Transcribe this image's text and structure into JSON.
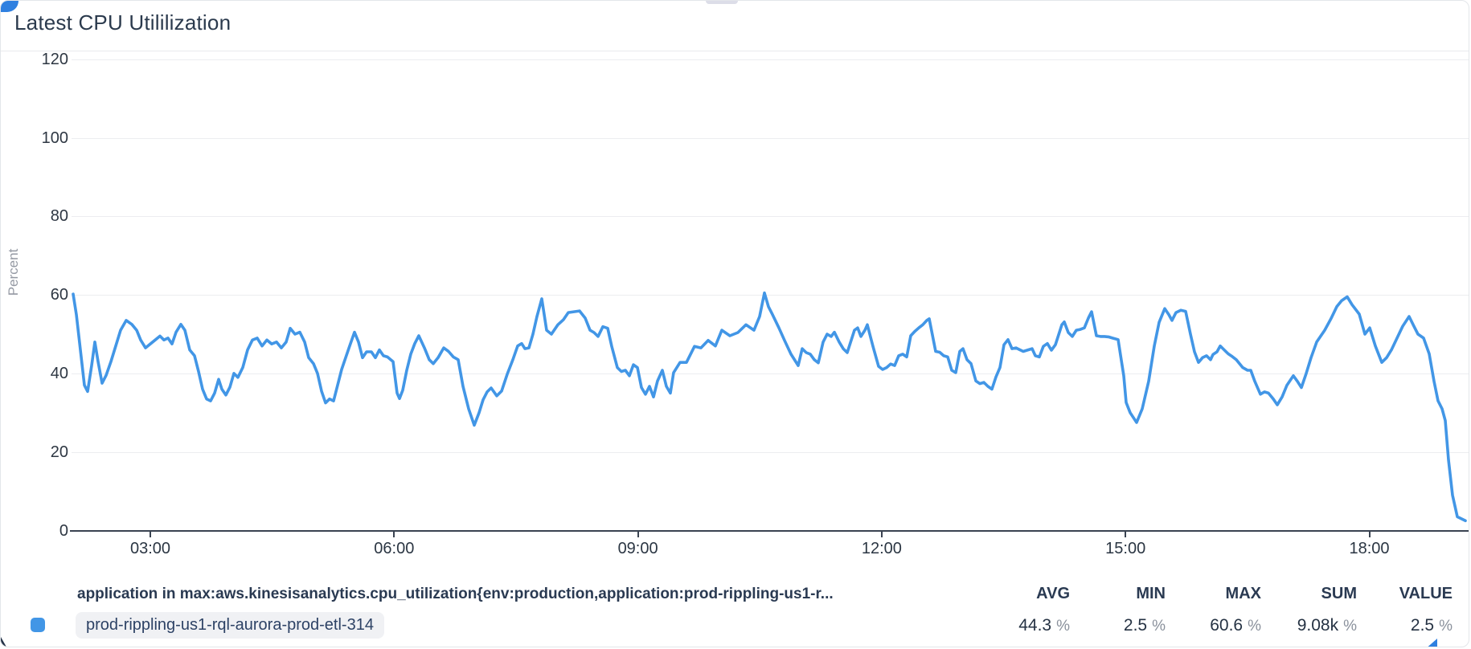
{
  "card": {
    "title": "Latest CPU Utililization"
  },
  "chart_data": {
    "type": "line",
    "title": "Latest CPU Utililization",
    "xlabel": "",
    "ylabel": "Percent",
    "ylim": [
      0,
      120
    ],
    "grid": "horizontal",
    "legend_position": "bottom",
    "y_ticks": [
      120,
      100,
      80,
      60,
      40,
      20,
      0
    ],
    "x_tick_labels": [
      "03:00",
      "06:00",
      "09:00",
      "12:00",
      "15:00",
      "18:00"
    ],
    "line_color": "#4296e6",
    "series": [
      {
        "name": "prod-rippling-us1-rql-aurora-prod-etl-314",
        "unit": "%",
        "points": [
          [
            90,
            60.2
          ],
          [
            94,
            55
          ],
          [
            99,
            46
          ],
          [
            104,
            37
          ],
          [
            108,
            35.4
          ],
          [
            113,
            42
          ],
          [
            117,
            48
          ],
          [
            121,
            43
          ],
          [
            126,
            37.5
          ],
          [
            131,
            39.5
          ],
          [
            137,
            43
          ],
          [
            143,
            47
          ],
          [
            149,
            51
          ],
          [
            156,
            53.5
          ],
          [
            163,
            52.5
          ],
          [
            169,
            51
          ],
          [
            174,
            48.5
          ],
          [
            180,
            46.5
          ],
          [
            186,
            47.5
          ],
          [
            192,
            48.5
          ],
          [
            198,
            49.5
          ],
          [
            203,
            48.5
          ],
          [
            208,
            49
          ],
          [
            213,
            47.5
          ],
          [
            218,
            50.5
          ],
          [
            224,
            52.5
          ],
          [
            229,
            51
          ],
          [
            235,
            46
          ],
          [
            241,
            44.5
          ],
          [
            246,
            40.5
          ],
          [
            251,
            36
          ],
          [
            256,
            33.5
          ],
          [
            261,
            33
          ],
          [
            266,
            35
          ],
          [
            271,
            38.5
          ],
          [
            275,
            36
          ],
          [
            280,
            34.5
          ],
          [
            285,
            36.5
          ],
          [
            290,
            40
          ],
          [
            295,
            39
          ],
          [
            301,
            41.5
          ],
          [
            307,
            46
          ],
          [
            313,
            48.5
          ],
          [
            319,
            49
          ],
          [
            325,
            47
          ],
          [
            331,
            48.5
          ],
          [
            337,
            47.5
          ],
          [
            343,
            48
          ],
          [
            349,
            46.5
          ],
          [
            355,
            48
          ],
          [
            360,
            51.5
          ],
          [
            366,
            50
          ],
          [
            372,
            50.5
          ],
          [
            378,
            48
          ],
          [
            383,
            44
          ],
          [
            389,
            42.5
          ],
          [
            394,
            40
          ],
          [
            399,
            35.5
          ],
          [
            404,
            32.5
          ],
          [
            409,
            33.5
          ],
          [
            414,
            33
          ],
          [
            419,
            37
          ],
          [
            424,
            41
          ],
          [
            429,
            44
          ],
          [
            434,
            47
          ],
          [
            440,
            50.5
          ],
          [
            445,
            48
          ],
          [
            450,
            44
          ],
          [
            455,
            45.5
          ],
          [
            461,
            45.5
          ],
          [
            466,
            44
          ],
          [
            471,
            46
          ],
          [
            476,
            44.5
          ],
          [
            481,
            44.2
          ],
          [
            488,
            43
          ],
          [
            493,
            35
          ],
          [
            496,
            33.6
          ],
          [
            500,
            35.7
          ],
          [
            505,
            40.8
          ],
          [
            510,
            44.9
          ],
          [
            515,
            47.6
          ],
          [
            520,
            49.6
          ],
          [
            527,
            46.5
          ],
          [
            533,
            43.5
          ],
          [
            538,
            42.5
          ],
          [
            544,
            44
          ],
          [
            551,
            46.5
          ],
          [
            557,
            45.6
          ],
          [
            563,
            44.2
          ],
          [
            569,
            43.5
          ],
          [
            575,
            36.7
          ],
          [
            582,
            31
          ],
          [
            589,
            26.8
          ],
          [
            595,
            30
          ],
          [
            600,
            33.3
          ],
          [
            605,
            35.3
          ],
          [
            610,
            36.3
          ],
          [
            617,
            34.3
          ],
          [
            623,
            35.5
          ],
          [
            630,
            39.8
          ],
          [
            637,
            43.5
          ],
          [
            643,
            47
          ],
          [
            648,
            47.6
          ],
          [
            652,
            46.3
          ],
          [
            657,
            46.5
          ],
          [
            662,
            50
          ],
          [
            667,
            54.5
          ],
          [
            673,
            59
          ],
          [
            679,
            51
          ],
          [
            685,
            50
          ],
          [
            693,
            52.4
          ],
          [
            700,
            53.7
          ],
          [
            706,
            55.5
          ],
          [
            713,
            55.7
          ],
          [
            720,
            55.9
          ],
          [
            727,
            54.1
          ],
          [
            733,
            51
          ],
          [
            738,
            50.4
          ],
          [
            743,
            49.4
          ],
          [
            749,
            51.9
          ],
          [
            755,
            51.5
          ],
          [
            760,
            46.9
          ],
          [
            767,
            41.5
          ],
          [
            772,
            40.5
          ],
          [
            777,
            40.8
          ],
          [
            782,
            39.4
          ],
          [
            787,
            42.2
          ],
          [
            792,
            41.5
          ],
          [
            797,
            36.4
          ],
          [
            802,
            34.7
          ],
          [
            807,
            36.7
          ],
          [
            812,
            34
          ],
          [
            817,
            38.1
          ],
          [
            823,
            40.8
          ],
          [
            828,
            36.7
          ],
          [
            833,
            35
          ],
          [
            837,
            40.2
          ],
          [
            845,
            42.8
          ],
          [
            853,
            42.8
          ],
          [
            863,
            46.9
          ],
          [
            871,
            46.5
          ],
          [
            880,
            48.4
          ],
          [
            889,
            47
          ],
          [
            897,
            51
          ],
          [
            907,
            49.6
          ],
          [
            917,
            50.4
          ],
          [
            927,
            52.4
          ],
          [
            937,
            51
          ],
          [
            944,
            54.5
          ],
          [
            950,
            60.5
          ],
          [
            955,
            57
          ],
          [
            960,
            55
          ],
          [
            968,
            51.6
          ],
          [
            975,
            48.4
          ],
          [
            983,
            44.9
          ],
          [
            992,
            42
          ],
          [
            997,
            46.3
          ],
          [
            1002,
            45.3
          ],
          [
            1007,
            44.9
          ],
          [
            1012,
            43.5
          ],
          [
            1017,
            42.7
          ],
          [
            1023,
            48
          ],
          [
            1028,
            50
          ],
          [
            1033,
            49.4
          ],
          [
            1037,
            50.5
          ],
          [
            1043,
            48
          ],
          [
            1048,
            46.3
          ],
          [
            1053,
            45.3
          ],
          [
            1062,
            51
          ],
          [
            1066,
            51.6
          ],
          [
            1070,
            49.4
          ],
          [
            1075,
            51
          ],
          [
            1078,
            52.4
          ],
          [
            1085,
            46.9
          ],
          [
            1092,
            41.8
          ],
          [
            1097,
            41
          ],
          [
            1102,
            41.5
          ],
          [
            1107,
            42.4
          ],
          [
            1112,
            42
          ],
          [
            1117,
            44.5
          ],
          [
            1122,
            44.9
          ],
          [
            1127,
            44.2
          ],
          [
            1132,
            49.6
          ],
          [
            1137,
            50.7
          ],
          [
            1142,
            51.6
          ],
          [
            1147,
            52.4
          ],
          [
            1152,
            53.5
          ],
          [
            1155,
            53.9
          ],
          [
            1163,
            45.6
          ],
          [
            1168,
            45.4
          ],
          [
            1173,
            44.5
          ],
          [
            1178,
            44.2
          ],
          [
            1183,
            40.8
          ],
          [
            1188,
            40.2
          ],
          [
            1193,
            45.6
          ],
          [
            1197,
            46.3
          ],
          [
            1202,
            43.5
          ],
          [
            1207,
            42.5
          ],
          [
            1213,
            38.1
          ],
          [
            1218,
            37.4
          ],
          [
            1223,
            37.7
          ],
          [
            1228,
            36.7
          ],
          [
            1233,
            36
          ],
          [
            1238,
            39.1
          ],
          [
            1243,
            41.5
          ],
          [
            1248,
            47.3
          ],
          [
            1253,
            48.6
          ],
          [
            1258,
            46.3
          ],
          [
            1263,
            46.5
          ],
          [
            1268,
            46
          ],
          [
            1272,
            45.6
          ],
          [
            1278,
            46
          ],
          [
            1283,
            46.3
          ],
          [
            1287,
            44.5
          ],
          [
            1292,
            44.2
          ],
          [
            1297,
            46.9
          ],
          [
            1302,
            47.6
          ],
          [
            1307,
            45.9
          ],
          [
            1312,
            47.3
          ],
          [
            1320,
            52.4
          ],
          [
            1323,
            53.1
          ],
          [
            1328,
            50.4
          ],
          [
            1333,
            49.4
          ],
          [
            1338,
            51
          ],
          [
            1343,
            51.2
          ],
          [
            1348,
            51.6
          ],
          [
            1353,
            54.1
          ],
          [
            1357,
            55.7
          ],
          [
            1363,
            49.6
          ],
          [
            1368,
            49.4
          ],
          [
            1373,
            49.4
          ],
          [
            1378,
            49.3
          ],
          [
            1383,
            49
          ],
          [
            1390,
            48.6
          ],
          [
            1397,
            39.4
          ],
          [
            1400,
            32.6
          ],
          [
            1405,
            30
          ],
          [
            1413,
            27.5
          ],
          [
            1420,
            31
          ],
          [
            1428,
            38
          ],
          [
            1435,
            47
          ],
          [
            1441,
            53
          ],
          [
            1448,
            56.5
          ],
          [
            1453,
            55
          ],
          [
            1457,
            53.5
          ],
          [
            1462,
            55.5
          ],
          [
            1468,
            56.1
          ],
          [
            1474,
            55.8
          ],
          [
            1480,
            50
          ],
          [
            1485,
            45.5
          ],
          [
            1490,
            42.8
          ],
          [
            1495,
            44
          ],
          [
            1500,
            44.5
          ],
          [
            1505,
            43.5
          ],
          [
            1508,
            44.8
          ],
          [
            1513,
            45.5
          ],
          [
            1517,
            47
          ],
          [
            1522,
            46
          ],
          [
            1527,
            45
          ],
          [
            1532,
            44.3
          ],
          [
            1537,
            43.5
          ],
          [
            1545,
            41.5
          ],
          [
            1551,
            40.8
          ],
          [
            1555,
            40.8
          ],
          [
            1560,
            38
          ],
          [
            1567,
            34.7
          ],
          [
            1572,
            35.3
          ],
          [
            1577,
            35
          ],
          [
            1583,
            33.5
          ],
          [
            1588,
            32
          ],
          [
            1594,
            34
          ],
          [
            1600,
            37
          ],
          [
            1608,
            39.4
          ],
          [
            1613,
            38
          ],
          [
            1618,
            36.4
          ],
          [
            1624,
            40
          ],
          [
            1630,
            44
          ],
          [
            1637,
            48
          ],
          [
            1647,
            51
          ],
          [
            1655,
            54
          ],
          [
            1662,
            57
          ],
          [
            1668,
            58.5
          ],
          [
            1675,
            59.5
          ],
          [
            1681,
            57.5
          ],
          [
            1690,
            55.1
          ],
          [
            1697,
            50
          ],
          [
            1703,
            51.6
          ],
          [
            1710,
            47
          ],
          [
            1718,
            42.8
          ],
          [
            1724,
            44
          ],
          [
            1730,
            46
          ],
          [
            1737,
            49
          ],
          [
            1744,
            52
          ],
          [
            1752,
            54.5
          ],
          [
            1758,
            52
          ],
          [
            1763,
            50
          ],
          [
            1770,
            49
          ],
          [
            1777,
            45
          ],
          [
            1783,
            38
          ],
          [
            1788,
            33
          ],
          [
            1793,
            31
          ],
          [
            1797,
            28
          ],
          [
            1801,
            18
          ],
          [
            1806,
            9
          ],
          [
            1812,
            3.5
          ],
          [
            1822,
            2.5
          ]
        ]
      }
    ]
  },
  "legend": {
    "expression": "application in max:aws.kinesisanalytics.cpu_utilization{env:production,application:prod-rippling-us1-r...",
    "series_label": "prod-rippling-us1-rql-aurora-prod-etl-314",
    "swatch_color": "#4296e6",
    "stats": [
      {
        "label": "AVG",
        "value": "44.3",
        "unit": "%"
      },
      {
        "label": "MIN",
        "value": "2.5",
        "unit": "%"
      },
      {
        "label": "MAX",
        "value": "60.6",
        "unit": "%"
      },
      {
        "label": "SUM",
        "value": "9.08k",
        "unit": "%"
      },
      {
        "label": "VALUE",
        "value": "2.5",
        "unit": "%"
      }
    ]
  }
}
